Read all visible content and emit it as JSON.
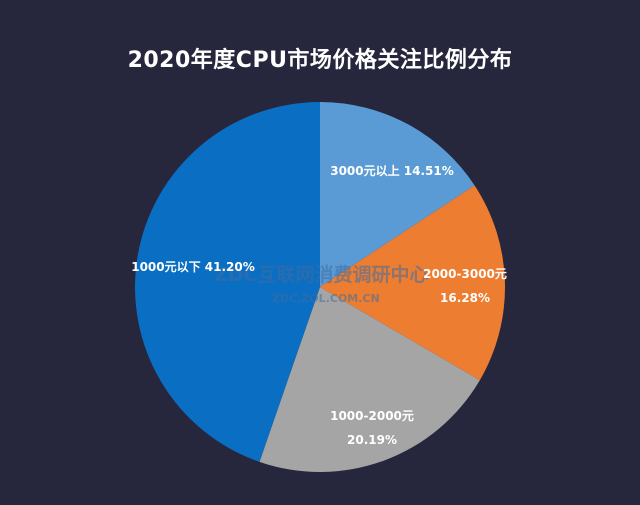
{
  "chart_data": {
    "type": "pie",
    "title": "2020年度CPU市场价格关注比例分布",
    "start_angle_deg": 0,
    "direction": "clockwise",
    "slices": [
      {
        "label": "3000元以上",
        "value": 14.51,
        "value_text": "14.51%",
        "color": "#5b9bd5"
      },
      {
        "label": "2000-3000元",
        "value": 16.28,
        "value_text": "16.28%",
        "color": "#ed7d31"
      },
      {
        "label": "1000-2000元",
        "value": 20.19,
        "value_text": "20.19%",
        "color": "#a5a5a5"
      },
      {
        "label": "1000元以下",
        "value": 41.2,
        "value_text": "41.20%",
        "color": "#0a6ec2"
      }
    ],
    "legend": "none"
  },
  "background_color": "#26263c",
  "watermark": {
    "main": "ZDC互联网消费调研中心",
    "sub": "ZDC.ZOL.COM.CN"
  }
}
